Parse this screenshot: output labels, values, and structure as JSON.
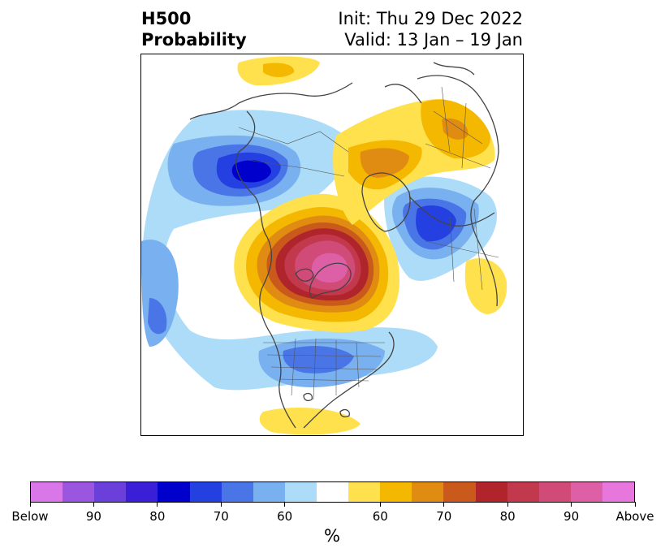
{
  "title": {
    "left_line1": "H500",
    "left_line2": "Probability",
    "right_line1": "Init: Thu 29 Dec 2022",
    "right_line2": "Valid: 13 Jan – 19 Jan"
  },
  "map": {
    "projection": "north-polar-stereographic",
    "colors": {
      "land_outline": "#444444",
      "border": "#000000"
    },
    "features": [
      "below-normal-anomaly",
      "above-normal-anomaly",
      "coastlines",
      "political-boundaries"
    ]
  },
  "colorbar": {
    "segments": [
      "#d977e8",
      "#9b56e0",
      "#6b3fd9",
      "#3a1fd6",
      "#0000cc",
      "#2440e0",
      "#4a75e6",
      "#79b0f0",
      "#addcf8",
      "#ffffff",
      "#ffe14d",
      "#f5b800",
      "#e08c12",
      "#c95a1b",
      "#b0242b",
      "#c2384d",
      "#d04b78",
      "#dd5fa6",
      "#e877dd"
    ],
    "tick_labels": [
      "Below",
      "90",
      "80",
      "70",
      "60",
      "60",
      "70",
      "80",
      "90",
      "Above"
    ],
    "unit": "%"
  }
}
